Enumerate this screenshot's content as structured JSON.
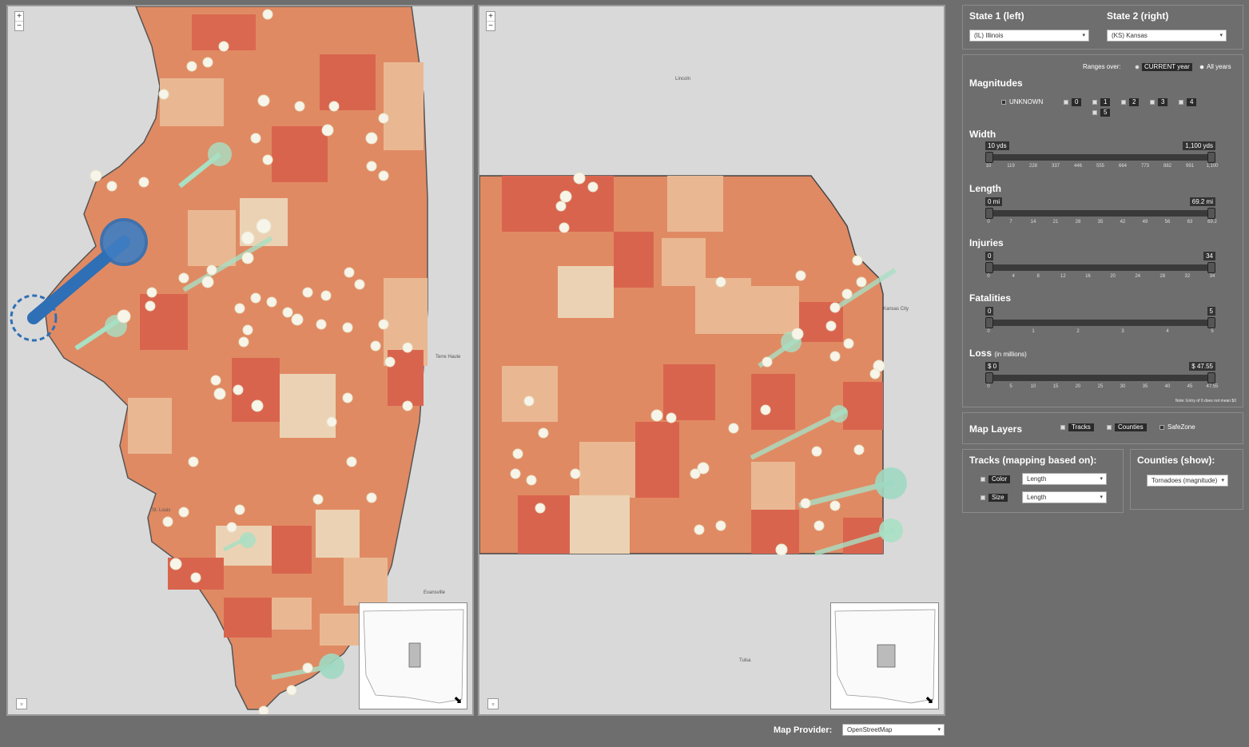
{
  "state1": {
    "label": "State 1 (left)",
    "selected": "(IL) Illinois"
  },
  "state2": {
    "label": "State 2 (right)",
    "selected": "(KS) Kansas"
  },
  "ranges": {
    "label": "Ranges over:",
    "options": [
      "CURRENT year",
      "All years"
    ],
    "selected": "All years"
  },
  "magnitudes": {
    "title": "Magnitudes",
    "items": [
      "UNKNOWN",
      "0",
      "1",
      "2",
      "3",
      "4",
      "5"
    ]
  },
  "width": {
    "title": "Width",
    "min_label": "10 yds",
    "max_label": "1,100 yds",
    "ticks": [
      "10",
      "119",
      "228",
      "337",
      "446",
      "555",
      "664",
      "773",
      "882",
      "991",
      "1,100"
    ]
  },
  "length": {
    "title": "Length",
    "min_label": "0 mi",
    "max_label": "69.2 mi",
    "ticks": [
      "0",
      "7",
      "14",
      "21",
      "28",
      "35",
      "42",
      "49",
      "56",
      "63",
      "69.2"
    ]
  },
  "injuries": {
    "title": "Injuries",
    "min_label": "0",
    "max_label": "34",
    "ticks": [
      "0",
      "4",
      "8",
      "12",
      "16",
      "20",
      "24",
      "28",
      "32",
      "34"
    ]
  },
  "fatalities": {
    "title": "Fatalities",
    "min_label": "0",
    "max_label": "5",
    "ticks": [
      "0",
      "1",
      "2",
      "3",
      "4",
      "5"
    ]
  },
  "loss": {
    "title": "Loss",
    "subtitle": "(in millions)",
    "min_label": "$ 0",
    "max_label": "$ 47.55",
    "ticks": [
      "0",
      "5",
      "10",
      "15",
      "20",
      "25",
      "30",
      "35",
      "40",
      "45",
      "47.55"
    ],
    "note": "Note: Entry of 0 does not mean $0"
  },
  "map_layers": {
    "title": "Map Layers",
    "items": [
      "Tracks",
      "Counties",
      "SafeZone"
    ]
  },
  "tracks": {
    "title": "Tracks (mapping based on):",
    "color_label": "Color",
    "color_value": "Length",
    "size_label": "Size",
    "size_value": "Length"
  },
  "counties": {
    "title": "Counties (show):",
    "value": "Tornadoes (magnitude)"
  },
  "map_provider": {
    "label": "Map Provider:",
    "value": "OpenStreetMap"
  },
  "map_controls": {
    "zoom_in": "+",
    "zoom_out": "−",
    "expand": "⬊"
  },
  "colors": {
    "county_dark": "#d9644e",
    "county_mid": "#e08a63",
    "county_light": "#e9b892",
    "county_pale": "#ecd2b4",
    "track_blue": "#2f6fb5",
    "track_green": "#a8e0c4",
    "track_white": "#f7f5ea"
  }
}
